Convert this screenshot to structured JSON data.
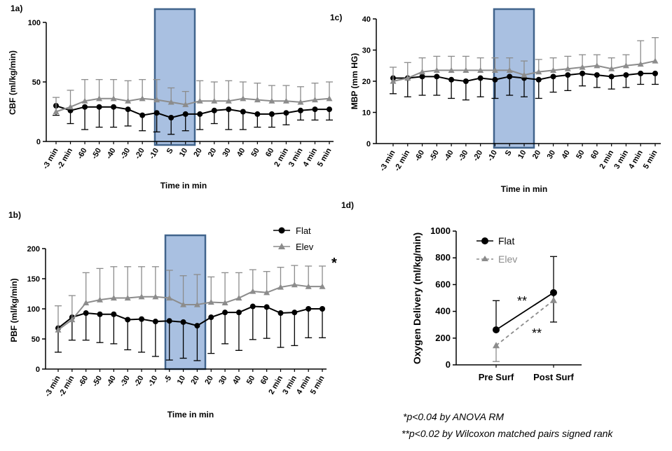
{
  "colors": {
    "flat": "#000000",
    "elev": "#8c8c8c",
    "shade_fill": "#a9c0e1",
    "shade_stroke": "#41648c"
  },
  "legend_main": {
    "flat": "Flat",
    "elev": "Elev"
  },
  "significance_1b": "*",
  "footnotes": [
    "*p<0.04 by ANOVA RM",
    "**p<0.02 by Wilcoxon matched pairs signed rank"
  ],
  "chart_data": [
    {
      "id": "1a",
      "label": "1a)",
      "type": "line",
      "xlabel": "Time in min",
      "ylabel": "CBF (ml/kg/min)",
      "ylim": [
        0,
        100
      ],
      "yticks": [
        0,
        50,
        100
      ],
      "categories": [
        "-3 min",
        "-2 min",
        "-60",
        "-50",
        "-40",
        "-30",
        "-20",
        "-10",
        "S",
        "10",
        "20",
        "20",
        "30",
        "40",
        "50",
        "60",
        "2 min",
        "3 min",
        "4 min",
        "5 min"
      ],
      "shade_category_range": [
        7.5,
        10.5
      ],
      "series": [
        {
          "name": "Flat",
          "values": [
            30,
            26,
            29,
            29,
            29,
            27,
            22,
            24,
            20,
            23,
            23,
            26,
            27,
            25,
            23,
            23,
            24,
            26,
            27,
            27
          ],
          "errors": [
            8,
            11,
            19,
            17,
            17,
            14,
            13,
            16,
            14,
            14,
            13,
            11,
            17,
            15,
            11,
            11,
            10,
            8,
            9,
            9
          ]
        },
        {
          "name": "Elev",
          "values": [
            25,
            29,
            34,
            36,
            36,
            34,
            36,
            35,
            33,
            31,
            34,
            34,
            34,
            36,
            35,
            34,
            34,
            33,
            35,
            36
          ],
          "errors": [
            12,
            14,
            18,
            16,
            16,
            17,
            16,
            17,
            12,
            11,
            17,
            16,
            17,
            14,
            14,
            13,
            13,
            13,
            14,
            14
          ]
        }
      ]
    },
    {
      "id": "1b",
      "label": "1b)",
      "type": "line",
      "xlabel": "Time in min",
      "ylabel": "PBF (ml/kg/min)",
      "ylim": [
        0,
        200
      ],
      "yticks": [
        0,
        50,
        100,
        150,
        200
      ],
      "categories": [
        "-3 min",
        "-2 min",
        "-60",
        "-50",
        "-40",
        "-30",
        "-20",
        "-10",
        "-5",
        "10",
        "20",
        "20",
        "30",
        "40",
        "50",
        "60",
        "2 min",
        "3 min",
        "4 min",
        "5 min"
      ],
      "shade_category_range": [
        8.5,
        11.5
      ],
      "series": [
        {
          "name": "Flat",
          "values": [
            68,
            86,
            93,
            91,
            91,
            82,
            83,
            79,
            80,
            78,
            72,
            86,
            94,
            94,
            104,
            103,
            93,
            94,
            100,
            100
          ],
          "errors": [
            40,
            38,
            45,
            47,
            49,
            50,
            55,
            58,
            65,
            60,
            58,
            60,
            52,
            63,
            55,
            52,
            57,
            55,
            48,
            48
          ]
        },
        {
          "name": "Elev",
          "values": [
            65,
            82,
            110,
            115,
            118,
            118,
            120,
            120,
            118,
            107,
            107,
            111,
            110,
            118,
            129,
            127,
            136,
            140,
            137,
            137
          ],
          "errors": [
            40,
            40,
            50,
            52,
            52,
            52,
            50,
            50,
            46,
            48,
            50,
            42,
            50,
            42,
            36,
            35,
            33,
            32,
            34,
            34
          ]
        }
      ]
    },
    {
      "id": "1c",
      "label": "1c)",
      "type": "line",
      "xlabel": "Time in min",
      "ylabel": "MBP (mm HG)",
      "ylim": [
        0,
        40
      ],
      "yticks": [
        0,
        10,
        20,
        30,
        40
      ],
      "categories": [
        "-3 min",
        "-2 min",
        "-60",
        "-50",
        "-40",
        "-30",
        "-20",
        "-10",
        "S",
        "10",
        "20",
        "30",
        "40",
        "50",
        "60",
        "2 min",
        "3 min",
        "4 min",
        "5 min"
      ],
      "shade_category_range": [
        7.5,
        10.5
      ],
      "series": [
        {
          "name": "Flat",
          "values": [
            21,
            21,
            21.5,
            21.5,
            20.5,
            20,
            21,
            20.5,
            21.5,
            21,
            20.5,
            21.5,
            22,
            22.5,
            22,
            21.5,
            22,
            22.5,
            22.5
          ],
          "errors": [
            5,
            6,
            6,
            6,
            6,
            6,
            6,
            6,
            6,
            6,
            6,
            5,
            5,
            4,
            4,
            4,
            4,
            3.5,
            3.5
          ]
        },
        {
          "name": "Elev",
          "values": [
            20,
            21,
            23,
            23.5,
            23.5,
            23.5,
            23.5,
            23.5,
            23.5,
            22,
            23,
            23.5,
            24,
            24.5,
            25,
            24,
            25,
            25.5,
            26.5
          ],
          "errors": [
            4.5,
            5,
            4.5,
            4.5,
            4.5,
            4.5,
            4,
            4,
            4,
            4.5,
            4,
            4,
            4,
            4,
            3.5,
            3.5,
            3.5,
            7.5,
            7.5
          ]
        }
      ]
    },
    {
      "id": "1d",
      "label": "1d)",
      "type": "line",
      "xlabel": "",
      "ylabel": "Oxygen Delivery (ml/kg/min)",
      "ylim": [
        0,
        1000
      ],
      "yticks": [
        0,
        200,
        400,
        600,
        800,
        1000
      ],
      "categories": [
        "Pre Surf",
        "Post Surf"
      ],
      "legend": [
        "Flat",
        "Elev"
      ],
      "annotations": [
        "**",
        "**"
      ],
      "series": [
        {
          "name": "Flat",
          "values": [
            262,
            540
          ],
          "error_up": [
            480,
            810
          ],
          "error_down": [
            null,
            320
          ]
        },
        {
          "name": "Elev",
          "values": [
            145,
            483
          ],
          "error_up": [
            null,
            null
          ],
          "error_down": [
            25,
            null
          ]
        }
      ]
    }
  ]
}
